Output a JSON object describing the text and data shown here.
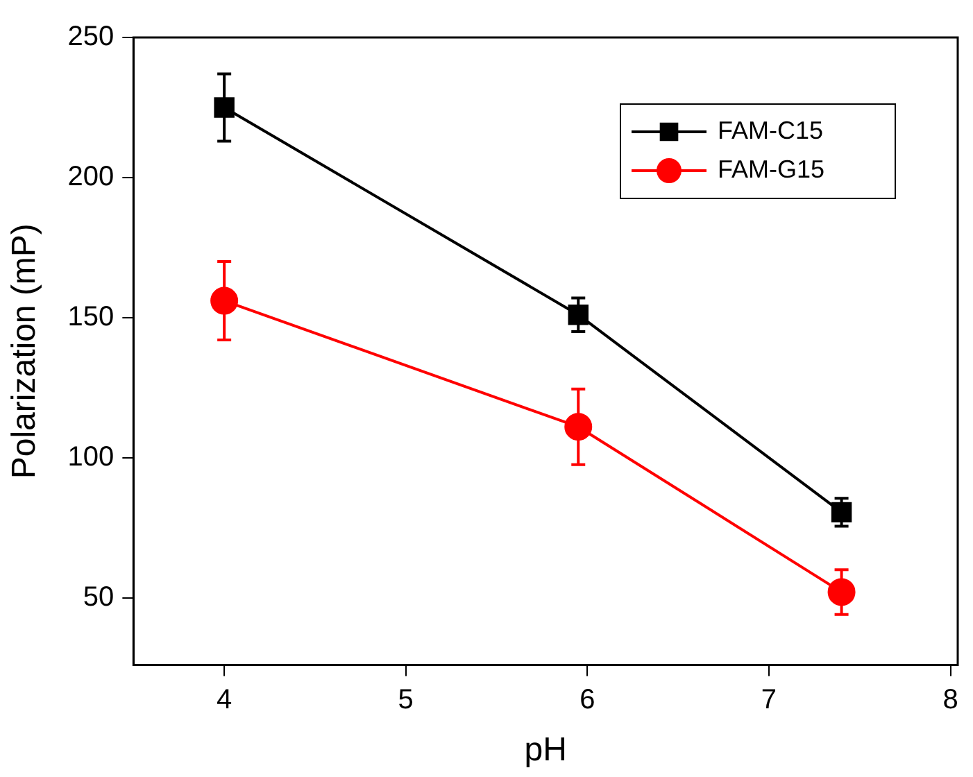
{
  "chart_data": {
    "type": "line",
    "xlabel": "pH",
    "ylabel": "Polarization (mP)",
    "x": [
      4,
      5.95,
      7.4
    ],
    "series": [
      {
        "name": "FAM-C15",
        "color": "#000000",
        "marker": "square",
        "values": [
          225,
          151,
          80.5
        ],
        "errors": [
          12,
          6,
          5
        ]
      },
      {
        "name": "FAM-G15",
        "color": "#ff0000",
        "marker": "circle",
        "values": [
          156,
          111,
          52
        ],
        "errors": [
          14,
          13.5,
          8
        ]
      }
    ],
    "xlim": [
      3.5,
      8.04
    ],
    "xticks": [
      4,
      5,
      6,
      7,
      8
    ],
    "ylim": [
      26,
      250
    ],
    "yticks": [
      50,
      100,
      150,
      200,
      250
    ],
    "grid": false,
    "legend": "top right",
    "line_style": "solid"
  }
}
